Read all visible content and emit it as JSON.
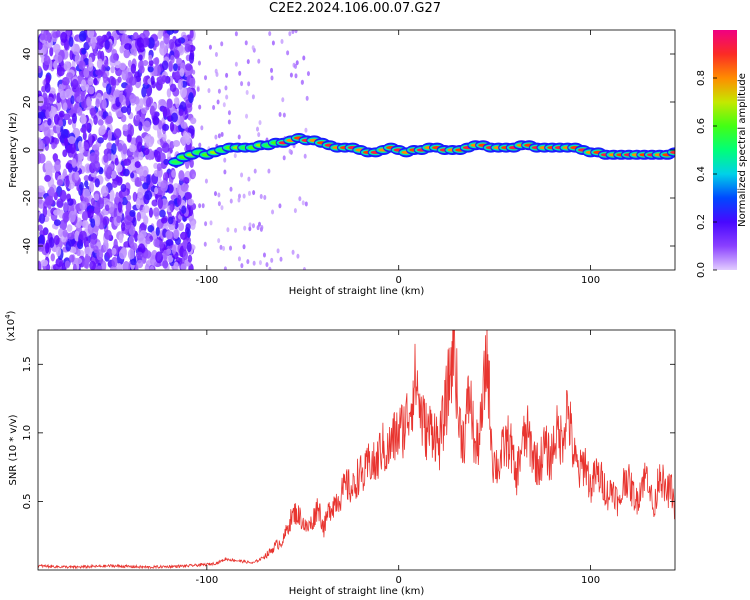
{
  "title": "C2E2.2024.106.00.07.G27",
  "chart_data": [
    {
      "type": "heatmap",
      "xlabel": "Height of straight line (km)",
      "ylabel": "Frequency (Hz)",
      "xlim": [
        -188,
        144
      ],
      "ylim": [
        -50,
        50
      ],
      "xticks": [
        -100,
        0,
        100
      ],
      "yticks": [
        -40,
        -20,
        0,
        20,
        40
      ],
      "ridge": [
        [
          -116,
          -5
        ],
        [
          -112,
          -3
        ],
        [
          -108,
          -2
        ],
        [
          -104,
          -1
        ],
        [
          -100,
          -2
        ],
        [
          -96,
          -1
        ],
        [
          -92,
          0
        ],
        [
          -88,
          1
        ],
        [
          -84,
          1
        ],
        [
          -80,
          1
        ],
        [
          -76,
          1
        ],
        [
          -72,
          2
        ],
        [
          -68,
          2
        ],
        [
          -64,
          3
        ],
        [
          -60,
          3
        ],
        [
          -56,
          4
        ],
        [
          -52,
          5
        ],
        [
          -48,
          4
        ],
        [
          -44,
          4
        ],
        [
          -40,
          3
        ],
        [
          -36,
          2
        ],
        [
          -32,
          1
        ],
        [
          -28,
          1
        ],
        [
          -24,
          1
        ],
        [
          -20,
          0
        ],
        [
          -16,
          -1
        ],
        [
          -12,
          -1
        ],
        [
          -8,
          0
        ],
        [
          -4,
          1
        ],
        [
          0,
          0
        ],
        [
          4,
          -1
        ],
        [
          8,
          0
        ],
        [
          12,
          0
        ],
        [
          16,
          1
        ],
        [
          20,
          1
        ],
        [
          24,
          0
        ],
        [
          28,
          0
        ],
        [
          32,
          0
        ],
        [
          36,
          1
        ],
        [
          40,
          2
        ],
        [
          44,
          2
        ],
        [
          48,
          1
        ],
        [
          52,
          1
        ],
        [
          56,
          1
        ],
        [
          60,
          1
        ],
        [
          64,
          2
        ],
        [
          68,
          2
        ],
        [
          72,
          1
        ],
        [
          76,
          1
        ],
        [
          80,
          1
        ],
        [
          84,
          1
        ],
        [
          88,
          1
        ],
        [
          92,
          1
        ],
        [
          96,
          0
        ],
        [
          100,
          -1
        ],
        [
          104,
          -1
        ],
        [
          108,
          -2
        ],
        [
          112,
          -2
        ],
        [
          116,
          -2
        ],
        [
          120,
          -2
        ],
        [
          124,
          -2
        ],
        [
          128,
          -2
        ],
        [
          132,
          -2
        ],
        [
          136,
          -2
        ],
        [
          140,
          -2
        ],
        [
          144,
          -1
        ]
      ],
      "colorbar": {
        "label": "Normalized spectral amplitude",
        "range": [
          0,
          1
        ],
        "ticks": [
          "0.0",
          "0.2",
          "0.4",
          "0.6",
          "0.8"
        ]
      }
    },
    {
      "type": "line",
      "xlabel": "Height of straight line (km)",
      "ylabel": "SNR (10 * v/v)",
      "multiplier_label": "(x10",
      "multiplier_exp": "4",
      "xlim": [
        -188,
        144
      ],
      "ylim": [
        0,
        1.75
      ],
      "xticks": [
        -100,
        0,
        100
      ],
      "yticks": [
        "0.5",
        "1.0",
        "1.5"
      ],
      "color": "#e8342f",
      "series": [
        {
          "x": [
            -188,
            -170,
            -150,
            -130,
            -110,
            -100,
            -95,
            -90,
            -85,
            -80,
            -76,
            -72,
            -68,
            -64,
            -60,
            -57,
            -54,
            -51,
            -48,
            -45,
            -42,
            -39,
            -36,
            -33,
            -30,
            -27,
            -24,
            -21,
            -18,
            -15,
            -12,
            -9,
            -6,
            -3,
            0,
            3,
            6,
            9,
            12,
            15,
            18,
            21,
            24,
            27,
            29,
            31,
            34,
            37,
            40,
            43,
            46,
            49,
            52,
            55,
            58,
            61,
            64,
            67,
            70,
            73,
            76,
            79,
            82,
            85,
            88,
            91,
            94,
            97,
            100,
            103,
            106,
            109,
            112,
            115,
            118,
            121,
            124,
            127,
            130,
            133,
            136,
            139,
            142,
            144
          ],
          "y": [
            0.03,
            0.02,
            0.03,
            0.02,
            0.03,
            0.04,
            0.05,
            0.08,
            0.07,
            0.06,
            0.05,
            0.08,
            0.12,
            0.18,
            0.22,
            0.35,
            0.42,
            0.38,
            0.3,
            0.35,
            0.48,
            0.3,
            0.45,
            0.5,
            0.55,
            0.62,
            0.58,
            0.7,
            0.68,
            0.8,
            0.75,
            0.9,
            0.85,
            0.95,
            1.0,
            1.05,
            1.2,
            1.4,
            1.1,
            1.0,
            1.05,
            0.9,
            1.15,
            1.45,
            1.72,
            1.1,
            0.95,
            1.3,
            0.85,
            1.05,
            1.6,
            0.8,
            0.75,
            0.9,
            0.95,
            0.65,
            0.9,
            1.0,
            0.85,
            0.75,
            0.9,
            0.8,
            1.0,
            0.95,
            1.2,
            0.85,
            0.7,
            0.8,
            0.6,
            0.7,
            0.65,
            0.55,
            0.6,
            0.45,
            0.7,
            0.6,
            0.5,
            0.65,
            0.7,
            0.4,
            0.75,
            0.55,
            0.6,
            0.45
          ]
        }
      ]
    }
  ]
}
